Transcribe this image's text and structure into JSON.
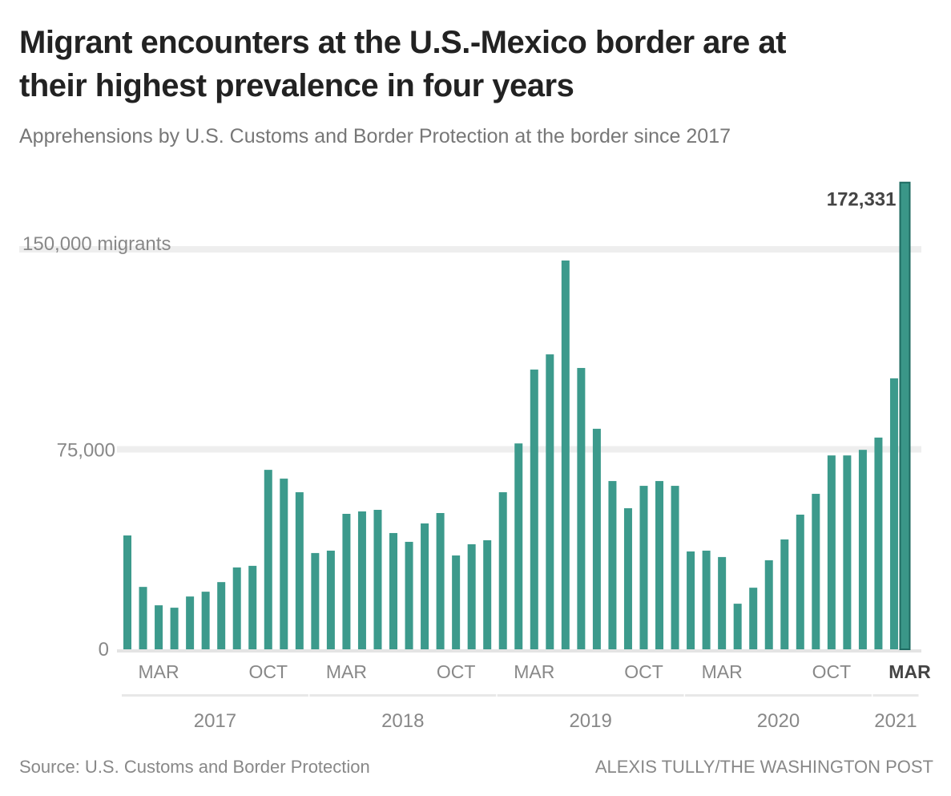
{
  "chart_data": {
    "type": "bar",
    "title": "Migrant encounters at the U.S.-Mexico border are at their highest prevalence in four years",
    "subtitle": "Apprehensions by U.S. Customs and Border Protection at the border since 2017",
    "xlabel": "",
    "ylabel": "",
    "ylim": [
      0,
      150000
    ],
    "yticks": [
      {
        "value": 0,
        "label": "0"
      },
      {
        "value": 75000,
        "label": "75,000"
      },
      {
        "value": 150000,
        "label": "150,000 migrants"
      }
    ],
    "grid": true,
    "month_ticks": [
      {
        "index": 2,
        "label": "MAR"
      },
      {
        "index": 9,
        "label": "OCT"
      },
      {
        "index": 14,
        "label": "MAR"
      },
      {
        "index": 21,
        "label": "OCT"
      },
      {
        "index": 26,
        "label": "MAR"
      },
      {
        "index": 33,
        "label": "OCT"
      },
      {
        "index": 38,
        "label": "MAR"
      },
      {
        "index": 45,
        "label": "OCT"
      },
      {
        "index": 50,
        "label": "MAR",
        "highlight": true
      }
    ],
    "year_groups": [
      {
        "label": "2017",
        "start": 0,
        "end": 11
      },
      {
        "label": "2018",
        "start": 12,
        "end": 23
      },
      {
        "label": "2019",
        "start": 24,
        "end": 35
      },
      {
        "label": "2020",
        "start": 36,
        "end": 47
      },
      {
        "label": "2021",
        "start": 48,
        "end": 50
      }
    ],
    "categories": [
      "Jan 2017",
      "Feb 2017",
      "Mar 2017",
      "Apr 2017",
      "May 2017",
      "Jun 2017",
      "Jul 2017",
      "Aug 2017",
      "Sep 2017",
      "Oct 2017",
      "Nov 2017",
      "Dec 2017",
      "Jan 2018",
      "Feb 2018",
      "Mar 2018",
      "Apr 2018",
      "May 2018",
      "Jun 2018",
      "Jul 2018",
      "Aug 2018",
      "Sep 2018",
      "Oct 2018",
      "Nov 2018",
      "Dec 2018",
      "Jan 2019",
      "Feb 2019",
      "Mar 2019",
      "Apr 2019",
      "May 2019",
      "Jun 2019",
      "Jul 2019",
      "Aug 2019",
      "Sep 2019",
      "Oct 2019",
      "Nov 2019",
      "Dec 2019",
      "Jan 2020",
      "Feb 2020",
      "Mar 2020",
      "Apr 2020",
      "May 2020",
      "Jun 2020",
      "Jul 2020",
      "Aug 2020",
      "Sep 2020",
      "Oct 2020",
      "Nov 2020",
      "Dec 2020",
      "Jan 2021",
      "Feb 2021",
      "Mar 2021"
    ],
    "values": [
      42700,
      23400,
      16500,
      15600,
      19800,
      21600,
      25200,
      30700,
      31300,
      67300,
      64000,
      58900,
      36100,
      37000,
      50800,
      51700,
      52300,
      43600,
      40300,
      47200,
      51100,
      35200,
      39400,
      40900,
      58900,
      77200,
      104900,
      110600,
      145800,
      105500,
      82700,
      63100,
      52900,
      61300,
      63100,
      61300,
      36700,
      37000,
      34600,
      17100,
      23100,
      33400,
      41200,
      50500,
      58300,
      72700,
      72700,
      74800,
      79400,
      101600,
      172331
    ],
    "highlight_index": 50,
    "highlight_label": "172,331",
    "colors": {
      "bar": "#3c9a8c",
      "highlight_bar": "#3a9688",
      "highlight_border": "#1f6b62",
      "grid": "#eeeeee"
    }
  },
  "footer": {
    "source": "Source: U.S. Customs and Border Protection",
    "credit": "alexis tully/the washington post"
  }
}
